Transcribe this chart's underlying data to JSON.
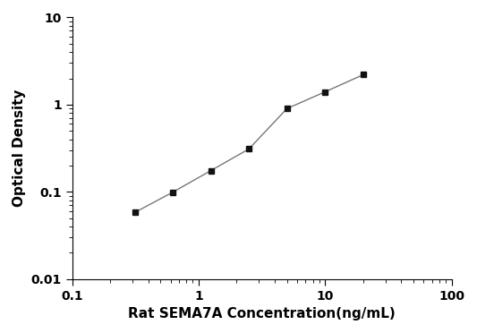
{
  "x": [
    0.313,
    0.625,
    1.25,
    2.5,
    5.0,
    10.0,
    20.0
  ],
  "y": [
    0.058,
    0.099,
    0.175,
    0.31,
    0.9,
    1.4,
    2.2
  ],
  "xlabel": "Rat SEMA7A Concentration(ng/mL)",
  "ylabel": "Optical Density",
  "xlim": [
    0.1,
    100
  ],
  "ylim": [
    0.01,
    10
  ],
  "xticks": [
    0.1,
    1,
    10,
    100
  ],
  "yticks": [
    0.01,
    0.1,
    1,
    10
  ],
  "xtick_labels": [
    "0.1",
    "1",
    "10",
    "100"
  ],
  "ytick_labels": [
    "0.01",
    "0.1",
    "1",
    "10"
  ],
  "line_color": "#777777",
  "marker_color": "#111111",
  "marker": "s",
  "marker_size": 5,
  "line_width": 1.0,
  "background_color": "#ffffff",
  "xlabel_fontsize": 11,
  "ylabel_fontsize": 11,
  "tick_fontsize": 10
}
